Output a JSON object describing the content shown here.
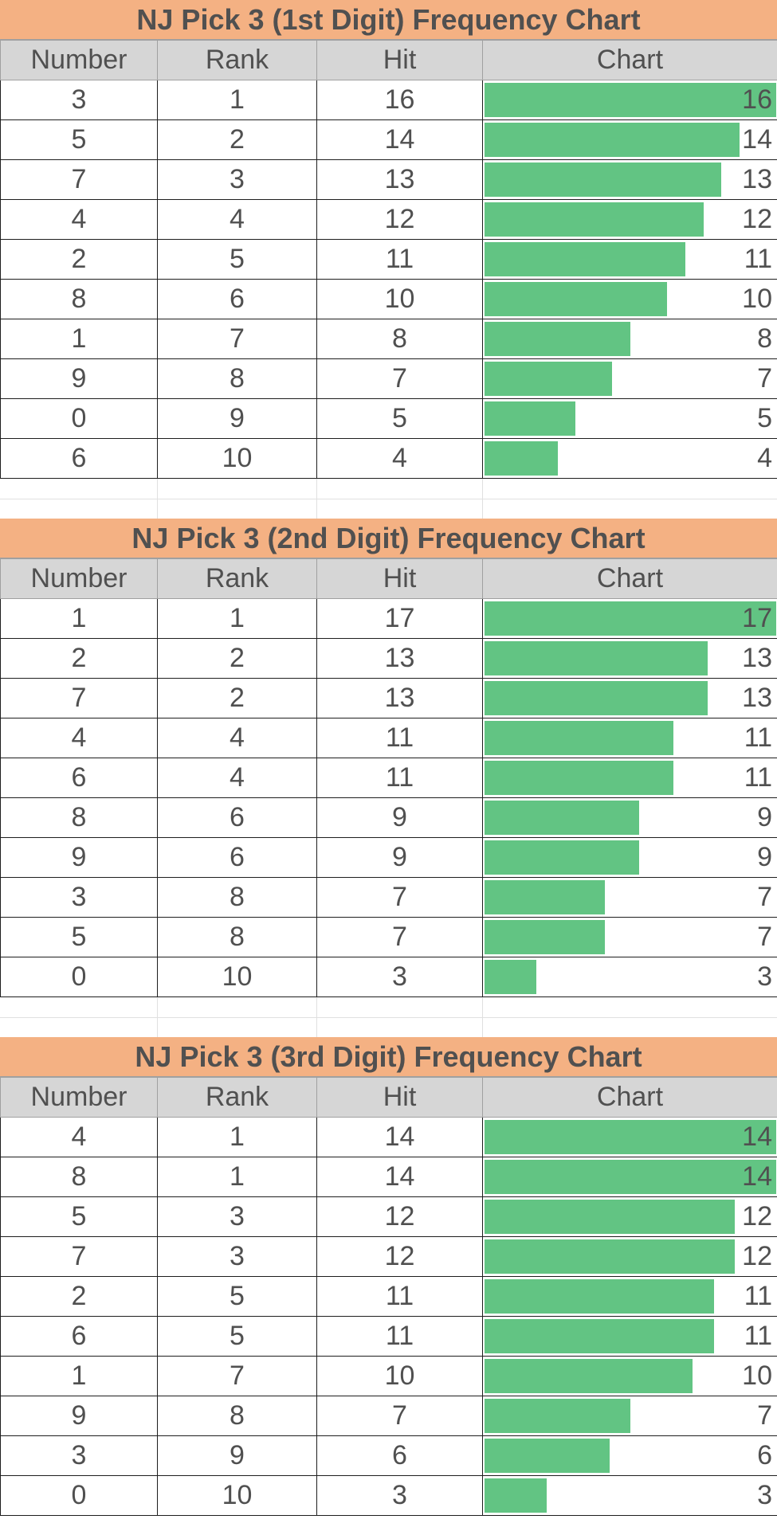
{
  "headers": {
    "number": "Number",
    "rank": "Rank",
    "hit": "Hit",
    "chart": "Chart"
  },
  "chart_data": [
    {
      "type": "bar",
      "title": "NJ Pick 3 (1st Digit) Frequency Chart",
      "rows": [
        {
          "number": "3",
          "rank": "1",
          "hit": 16
        },
        {
          "number": "5",
          "rank": "2",
          "hit": 14
        },
        {
          "number": "7",
          "rank": "3",
          "hit": 13
        },
        {
          "number": "4",
          "rank": "4",
          "hit": 12
        },
        {
          "number": "2",
          "rank": "5",
          "hit": 11
        },
        {
          "number": "8",
          "rank": "6",
          "hit": 10
        },
        {
          "number": "1",
          "rank": "7",
          "hit": 8
        },
        {
          "number": "9",
          "rank": "8",
          "hit": 7
        },
        {
          "number": "0",
          "rank": "9",
          "hit": 5
        },
        {
          "number": "6",
          "rank": "10",
          "hit": 4
        }
      ]
    },
    {
      "type": "bar",
      "title": "NJ Pick 3 (2nd Digit) Frequency Chart",
      "rows": [
        {
          "number": "1",
          "rank": "1",
          "hit": 17
        },
        {
          "number": "2",
          "rank": "2",
          "hit": 13
        },
        {
          "number": "7",
          "rank": "2",
          "hit": 13
        },
        {
          "number": "4",
          "rank": "4",
          "hit": 11
        },
        {
          "number": "6",
          "rank": "4",
          "hit": 11
        },
        {
          "number": "8",
          "rank": "6",
          "hit": 9
        },
        {
          "number": "9",
          "rank": "6",
          "hit": 9
        },
        {
          "number": "3",
          "rank": "8",
          "hit": 7
        },
        {
          "number": "5",
          "rank": "8",
          "hit": 7
        },
        {
          "number": "0",
          "rank": "10",
          "hit": 3
        }
      ]
    },
    {
      "type": "bar",
      "title": "NJ Pick 3 (3rd Digit) Frequency Chart",
      "rows": [
        {
          "number": "4",
          "rank": "1",
          "hit": 14
        },
        {
          "number": "8",
          "rank": "1",
          "hit": 14
        },
        {
          "number": "5",
          "rank": "3",
          "hit": 12
        },
        {
          "number": "7",
          "rank": "3",
          "hit": 12
        },
        {
          "number": "2",
          "rank": "5",
          "hit": 11
        },
        {
          "number": "6",
          "rank": "5",
          "hit": 11
        },
        {
          "number": "1",
          "rank": "7",
          "hit": 10
        },
        {
          "number": "9",
          "rank": "8",
          "hit": 7
        },
        {
          "number": "3",
          "rank": "9",
          "hit": 6
        },
        {
          "number": "0",
          "rank": "10",
          "hit": 3
        }
      ]
    }
  ],
  "colors": {
    "title_bg": "#f4b183",
    "header_bg": "#d6d6d6",
    "bar": "#62c483",
    "number_text": "#6464f0",
    "text": "#505050"
  }
}
